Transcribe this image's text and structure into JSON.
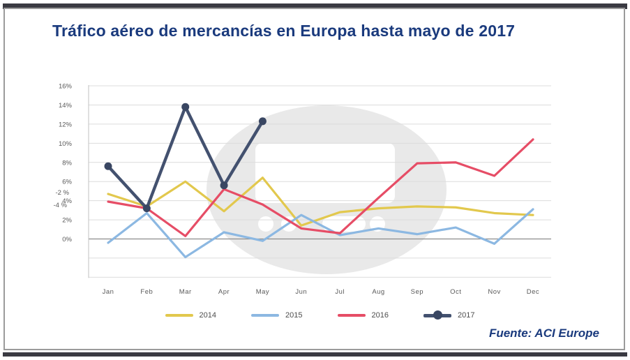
{
  "chart_data": {
    "type": "line",
    "title": "Tráfico aéreo de mercancías en Europa hasta mayo de 2017",
    "source": "Fuente: ACI Europe",
    "categories": [
      "Jan",
      "Feb",
      "Mar",
      "Apr",
      "May",
      "Jun",
      "Jul",
      "Aug",
      "Sep",
      "Oct",
      "Nov",
      "Dec"
    ],
    "series": [
      {
        "name": "2014",
        "color": "#e2c84d",
        "markers": false,
        "values": [
          4.7,
          3.4,
          6.0,
          2.9,
          6.4,
          1.4,
          2.8,
          3.2,
          3.4,
          3.3,
          2.7,
          2.5
        ]
      },
      {
        "name": "2015",
        "color": "#8cb8e2",
        "markers": false,
        "values": [
          -0.4,
          2.7,
          -1.9,
          0.7,
          -0.2,
          2.5,
          0.4,
          1.1,
          0.5,
          1.2,
          -0.5,
          3.1
        ]
      },
      {
        "name": "2016",
        "color": "#e64d66",
        "markers": false,
        "values": [
          3.9,
          3.2,
          0.3,
          5.2,
          3.6,
          1.1,
          0.6,
          4.3,
          7.9,
          8.0,
          6.6,
          10.4
        ]
      },
      {
        "name": "2017",
        "color": "#43516f",
        "marker_color": "#394662",
        "markers": true,
        "values": [
          7.6,
          3.2,
          13.8,
          5.6,
          12.3
        ]
      }
    ],
    "y_axis": {
      "tick_labels": [
        "16%",
        "14%",
        "12%",
        "10%",
        "8%",
        "6%",
        "4%",
        "2%",
        "0%"
      ],
      "tick_values": [
        16,
        14,
        12,
        10,
        8,
        6,
        4,
        2,
        0
      ],
      "stray_labels": [
        "-2 %",
        "-4 %"
      ],
      "unlabeled_gridline_values": [
        -2,
        -4
      ],
      "ylim": [
        -4,
        16
      ]
    },
    "grid": true,
    "legend_position": "bottom"
  }
}
